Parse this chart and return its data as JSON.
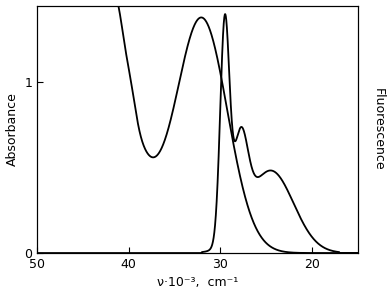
{
  "xlabel": "ν·10⁻³,  cm⁻¹",
  "ylabel_left": "Absorbance",
  "ylabel_right": "Fluorescence",
  "xlim": [
    50,
    15
  ],
  "ylim": [
    0,
    1.45
  ],
  "xticks": [
    50,
    40,
    30,
    20
  ],
  "yticks_left": [
    0,
    1
  ],
  "background_color": "#ffffff",
  "line_color": "#000000",
  "linewidth": 1.3,
  "figsize": [
    3.9,
    2.95
  ],
  "dpi": 100
}
